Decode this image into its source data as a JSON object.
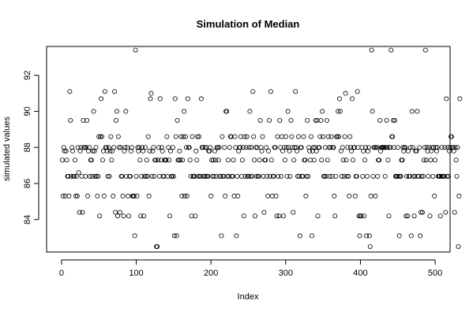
{
  "chart_data": {
    "type": "scatter",
    "title": "Simulation of Median",
    "xlabel": "Index",
    "ylabel": "simulated values",
    "xlim": [
      -20,
      520
    ],
    "ylim": [
      82.2,
      93.6
    ],
    "xticks": [
      0,
      100,
      200,
      300,
      400,
      500
    ],
    "yticks": [
      84,
      86,
      88,
      90,
      92
    ],
    "marker": "open-circle",
    "grid": false,
    "legend": "none",
    "values": [
      87.3,
      85.3,
      88,
      87.8,
      85.3,
      87.8,
      87.3,
      86.4,
      86.4,
      85.3,
      91.1,
      89.5,
      86.4,
      88,
      87.8,
      86.4,
      86.4,
      87.3,
      85.3,
      86.4,
      85.3,
      88,
      86.6,
      84.4,
      87.8,
      88,
      86.4,
      84.4,
      89.5,
      88,
      88,
      86.4,
      88,
      89.5,
      85.3,
      87.8,
      88,
      86.4,
      87.3,
      87.3,
      86.4,
      87.8,
      90,
      87.8,
      86.4,
      88,
      86.4,
      85.3,
      86.4,
      88.6,
      84.2,
      88.6,
      90.7,
      88.6,
      87.3,
      87.8,
      85.3,
      91.1,
      88,
      88,
      87.8,
      86.4,
      88,
      86.4,
      87.8,
      88.6,
      87.3,
      87.8,
      85.3,
      88,
      91.1,
      84.4,
      89.5,
      90,
      84.2,
      88.6,
      88,
      84.4,
      88,
      86.4,
      86.4,
      85.3,
      84.2,
      87.8,
      88,
      90,
      86.4,
      88,
      85.3,
      84.2,
      86.4,
      86.4,
      87.8,
      88,
      85.3,
      85.3,
      85.3,
      83.1,
      93.4,
      86.4,
      85.3,
      88,
      87.8,
      88,
      87.3,
      84.2,
      86.4,
      88,
      87.8,
      84.2,
      86.4,
      88,
      86.4,
      87.3,
      86.4,
      88.6,
      85.3,
      87.8,
      90.7,
      91,
      86.4,
      87.8,
      88,
      86.4,
      87.3,
      87.3,
      82.5,
      82.5,
      87.3,
      88,
      86.4,
      90.7,
      87.3,
      88,
      87.8,
      86.4,
      86.4,
      87.3,
      87.3,
      87.3,
      88.6,
      86.4,
      88,
      87.3,
      84.2,
      87.8,
      86.4,
      86.4,
      88,
      86.4,
      83.1,
      90.7,
      88.6,
      83.1,
      89.5,
      87.3,
      87.3,
      87.8,
      87.3,
      88.6,
      85.3,
      87.3,
      88.6,
      90,
      85.3,
      88.6,
      88,
      85.3,
      90.7,
      88,
      88,
      87.3,
      86.4,
      84.2,
      88.6,
      86.4,
      86.4,
      86.4,
      84.2,
      87.8,
      87.3,
      88.6,
      86.4,
      88.6,
      86.4,
      86.4,
      90.7,
      88,
      88,
      86.4,
      86.4,
      88,
      86.4,
      88,
      86.4,
      86.4,
      87.8,
      87.8,
      88,
      85.3,
      87.3,
      86.4,
      87.3,
      86.4,
      87.8,
      87.3,
      86.4,
      88,
      88,
      87.3,
      88,
      86.4,
      86.4,
      83.1,
      88.6,
      86.4,
      86.4,
      88,
      85.3,
      90,
      90,
      86.4,
      87.3,
      86.4,
      88,
      88.6,
      88.6,
      86.4,
      86.4,
      87.3,
      85.3,
      88.6,
      88,
      83.1,
      86.4,
      85.3,
      87.8,
      88,
      88,
      88.6,
      86.4,
      87.3,
      88,
      84.2,
      88.6,
      86.4,
      88,
      88.6,
      86.4,
      86.4,
      88,
      90,
      86.4,
      88,
      86.4,
      91.1,
      88.6,
      87.3,
      84.2,
      88,
      86.4,
      88,
      86.4,
      86.4,
      87.3,
      89.5,
      88,
      87.8,
      88.6,
      86.4,
      84.4,
      87.3,
      87.3,
      88,
      86.4,
      85.3,
      87.8,
      89.5,
      86.4,
      91.1,
      87.3,
      85.3,
      86.4,
      86.4,
      88,
      88,
      85.3,
      84.2,
      88.6,
      86.4,
      84.2,
      89.5,
      88,
      86.4,
      88.6,
      87.8,
      84.2,
      88,
      87.3,
      88.6,
      88,
      86.4,
      90,
      88,
      87.8,
      86.4,
      89.5,
      88.6,
      88,
      84.4,
      87.3,
      88,
      91.1,
      88,
      87.8,
      86.4,
      88.6,
      86.4,
      83.1,
      88,
      88,
      86.4,
      86.4,
      88.6,
      87.3,
      87.3,
      85.3,
      86.4,
      89.5,
      86.4,
      88,
      87.8,
      87.3,
      88.6,
      83.1,
      87.8,
      88,
      87.3,
      88,
      89.5,
      87.8,
      89.5,
      84.2,
      88,
      88,
      88.6,
      89.5,
      87.3,
      90,
      88.6,
      86.4,
      86.4,
      88,
      86.4,
      89.5,
      87.3,
      88.6,
      88,
      86.4,
      88,
      88.6,
      86.4,
      88,
      88,
      85.3,
      84.2,
      86.4,
      88.6,
      88.6,
      90,
      88.6,
      90.7,
      90,
      87.8,
      86.4,
      88,
      87.3,
      86.4,
      88.6,
      91,
      87.3,
      86.4,
      88,
      86.4,
      85.3,
      88.6,
      88,
      87.8,
      90.7,
      87.3,
      88,
      88,
      85.3,
      86.4,
      86.4,
      91.1,
      88,
      84.2,
      83.1,
      84.2,
      84.2,
      88,
      86.4,
      87.8,
      84.2,
      87.3,
      88,
      83.1,
      86.4,
      87.8,
      88,
      83.1,
      82.5,
      85.3,
      93.4,
      90,
      86.4,
      88,
      88,
      85.3,
      88,
      88,
      86.4,
      87.3,
      87.3,
      89.5,
      87.8,
      88,
      88,
      88,
      88,
      88,
      86.4,
      88,
      89.5,
      88,
      87.3,
      84.2,
      88,
      88,
      93.4,
      88.6,
      88.6,
      89.5,
      88,
      89.5,
      86.4,
      86.4,
      86.4,
      88,
      86.4,
      83.1,
      86.4,
      86.4,
      87.3,
      87.3,
      88,
      87.8,
      88,
      88,
      84.2,
      86.4,
      84.2,
      87.8,
      86.4,
      86.4,
      88,
      83.1,
      90,
      88,
      86.4,
      84.2,
      86.4,
      87.8,
      87.8,
      90,
      86.4,
      86.4,
      88,
      83.1,
      84.4,
      86.4,
      84.4,
      86.4,
      87.3,
      88,
      93.4,
      87.3,
      88,
      87.8,
      86.4,
      88,
      84.2,
      87.3,
      87.8,
      88,
      86.4,
      88,
      85.3,
      87.3,
      88,
      87.8,
      88,
      86.4,
      86.4,
      86.4,
      84.2,
      86.4,
      88,
      86.4,
      86.4,
      86.4,
      88,
      84.4,
      90.7,
      86.4,
      88,
      86.4,
      87.8,
      88,
      88.6,
      88.6,
      88,
      88,
      87.8,
      84.4,
      88,
      87.3,
      86.4,
      88,
      82.5,
      85.3,
      90.7
    ]
  }
}
